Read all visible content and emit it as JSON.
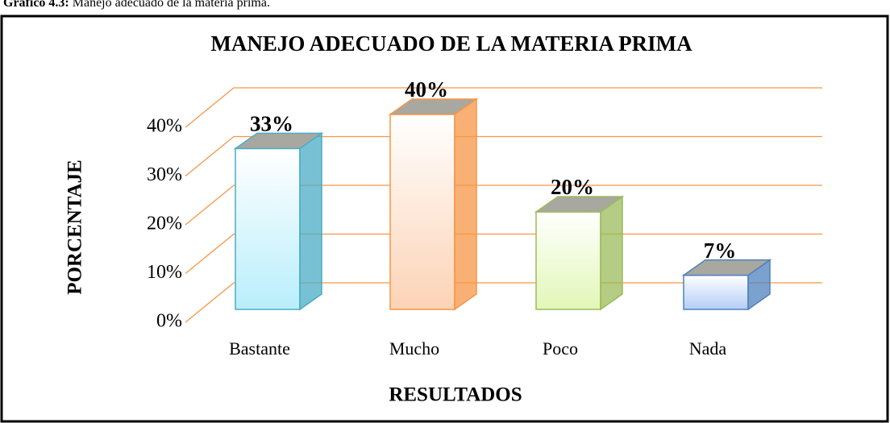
{
  "caption": {
    "label": "Gráfico 4.3:",
    "text": "Manejo adecuado de la materia prima."
  },
  "chart_data": {
    "type": "bar3d",
    "title": "MANEJO ADECUADO DE LA MATERIA PRIMA",
    "x_label": "RESULTADOS",
    "y_label": "PORCENTAJE",
    "categories": [
      "Bastante",
      "Mucho",
      "Poco",
      "Nada"
    ],
    "values": [
      33,
      40,
      20,
      7
    ],
    "value_labels": [
      "33%",
      "40%",
      "20%",
      "7%"
    ],
    "colors": [
      "#b9eefb",
      "#fcd3b5",
      "#e2f7b7",
      "#b3cdf5"
    ],
    "edge_colors": [
      "#4bacc6",
      "#f79646",
      "#9bbb59",
      "#4f81bd"
    ],
    "ylim": [
      0,
      40
    ],
    "yticks": [
      {
        "value": 0,
        "label": "0%"
      },
      {
        "value": 10,
        "label": "10%"
      },
      {
        "value": 20,
        "label": "20%"
      },
      {
        "value": 30,
        "label": "30%"
      },
      {
        "value": 40,
        "label": "40%"
      }
    ],
    "grid": true,
    "grid_color": "#f79646"
  }
}
